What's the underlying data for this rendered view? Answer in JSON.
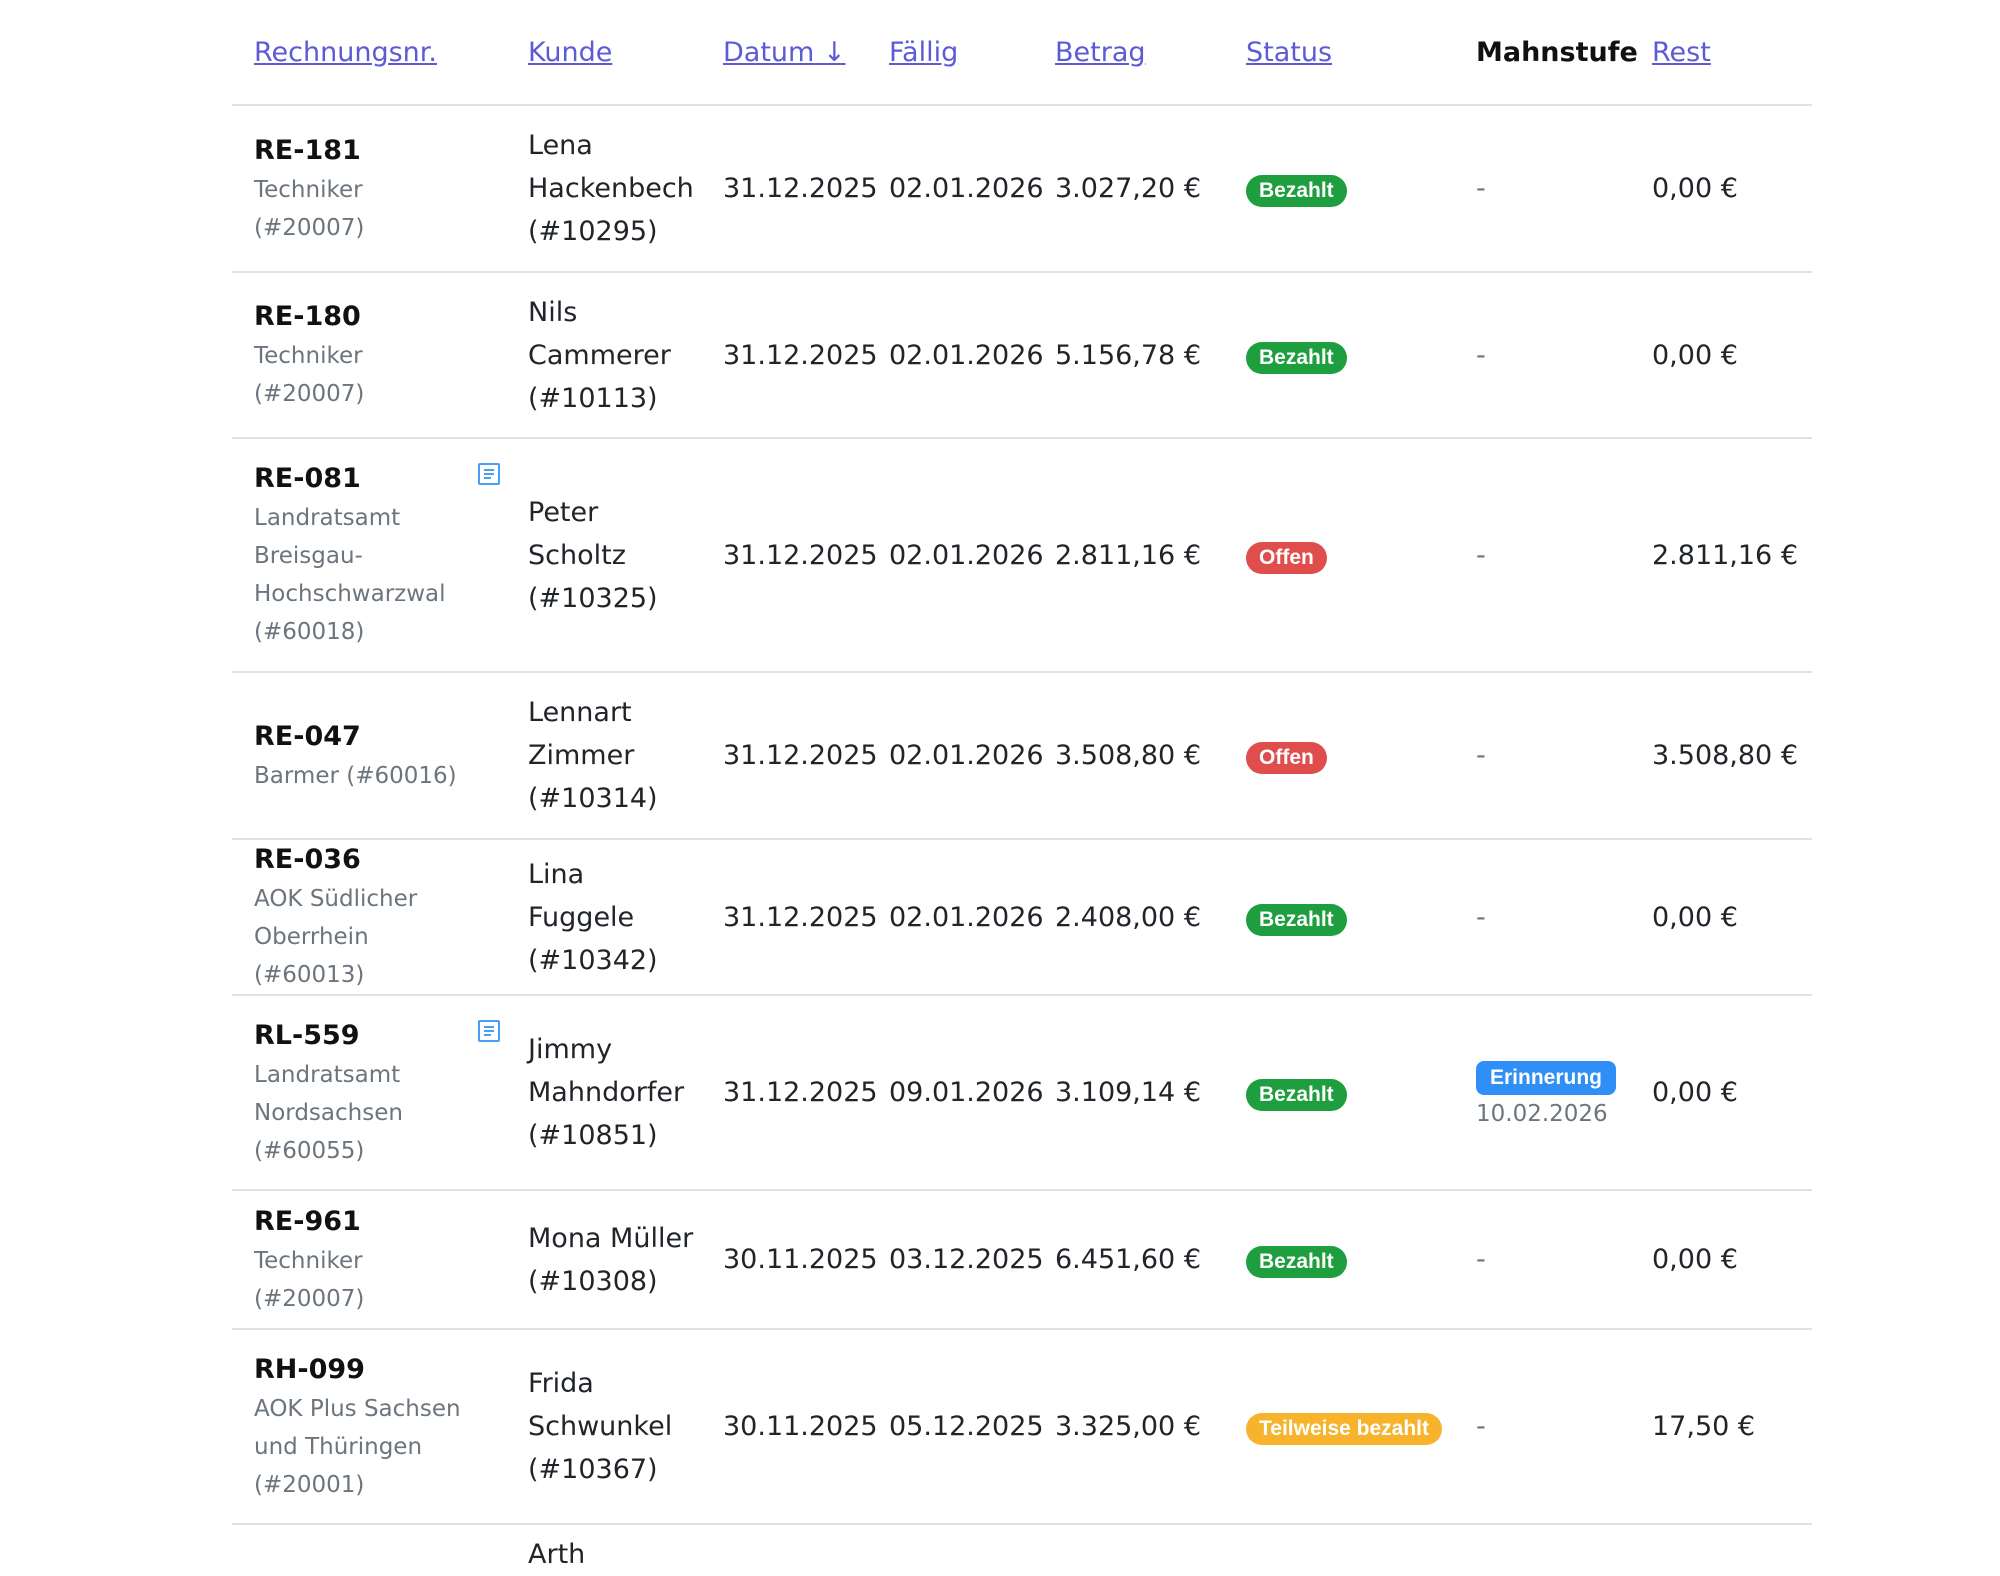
{
  "headers": {
    "nr": "Rechnungsnr.",
    "kunde": "Kunde",
    "datum": "Datum",
    "datum_sort": "↓",
    "faellig": "Fällig",
    "betrag": "Betrag",
    "status": "Status",
    "mahnstufe": "Mahnstufe",
    "rest": "Rest"
  },
  "rows": [
    {
      "nr": "RE-181",
      "payer": "Techniker (#20007)",
      "note": false,
      "kunde": "Lena Hackenbech (#10295)",
      "datum": "31.12.2025",
      "faellig": "02.01.2026",
      "betrag": "3.027,20 €",
      "status": "Bezahlt",
      "status_type": "paid",
      "mahn": "-",
      "mahn_date": "",
      "rest": "0,00 €"
    },
    {
      "nr": "RE-180",
      "payer": "Techniker (#20007)",
      "note": false,
      "kunde": "Nils Cammerer (#10113)",
      "datum": "31.12.2025",
      "faellig": "02.01.2026",
      "betrag": "5.156,78 €",
      "status": "Bezahlt",
      "status_type": "paid",
      "mahn": "-",
      "mahn_date": "",
      "rest": "0,00 €"
    },
    {
      "nr": "RE-081",
      "payer": "Landratsamt Breisgau-Hochschwarzwal (#60018)",
      "note": true,
      "kunde": "Peter Scholtz (#10325)",
      "datum": "31.12.2025",
      "faellig": "02.01.2026",
      "betrag": "2.811,16 €",
      "status": "Offen",
      "status_type": "open",
      "mahn": "-",
      "mahn_date": "",
      "rest": "2.811,16 €"
    },
    {
      "nr": "RE-047",
      "payer": "Barmer (#60016)",
      "note": false,
      "kunde": "Lennart Zimmer (#10314)",
      "datum": "31.12.2025",
      "faellig": "02.01.2026",
      "betrag": "3.508,80 €",
      "status": "Offen",
      "status_type": "open",
      "mahn": "-",
      "mahn_date": "",
      "rest": "3.508,80 €"
    },
    {
      "nr": "RE-036",
      "payer": "AOK Südlicher Oberrhein (#60013)",
      "note": false,
      "kunde": "Lina Fuggele (#10342)",
      "datum": "31.12.2025",
      "faellig": "02.01.2026",
      "betrag": "2.408,00 €",
      "status": "Bezahlt",
      "status_type": "paid",
      "mahn": "-",
      "mahn_date": "",
      "rest": "0,00 €"
    },
    {
      "nr": "RL-559",
      "payer": "Landratsamt Nordsachsen (#60055)",
      "note": true,
      "kunde": "Jimmy Mahndorfer (#10851)",
      "datum": "31.12.2025",
      "faellig": "09.01.2026",
      "betrag": "3.109,14 €",
      "status": "Bezahlt",
      "status_type": "paid",
      "mahn": "Erinnerung",
      "mahn_date": "10.02.2026",
      "rest": "0,00 €"
    },
    {
      "nr": "RE-961",
      "payer": "Techniker (#20007)",
      "note": false,
      "kunde": "Mona Müller (#10308)",
      "datum": "30.11.2025",
      "faellig": "03.12.2025",
      "betrag": "6.451,60 €",
      "status": "Bezahlt",
      "status_type": "paid",
      "mahn": "-",
      "mahn_date": "",
      "rest": "0,00 €"
    },
    {
      "nr": "RH-099",
      "payer": "AOK Plus Sachsen und Thüringen (#20001)",
      "note": false,
      "kunde": "Frida Schwunkel (#10367)",
      "datum": "30.11.2025",
      "faellig": "05.12.2025",
      "betrag": "3.325,00 €",
      "status": "Teilweise bezahlt",
      "status_type": "partial",
      "mahn": "-",
      "mahn_date": "",
      "rest": "17,50 €"
    }
  ],
  "partial_row": {
    "kunde": "Arth"
  },
  "colors": {
    "link": "#5b5bd6",
    "paid": "#1e9e3e",
    "open": "#e04d4d",
    "partial": "#f7b32b",
    "reminder": "#2f8ff7",
    "muted": "#6c757d"
  },
  "icons": {
    "note": "document-note-icon"
  }
}
